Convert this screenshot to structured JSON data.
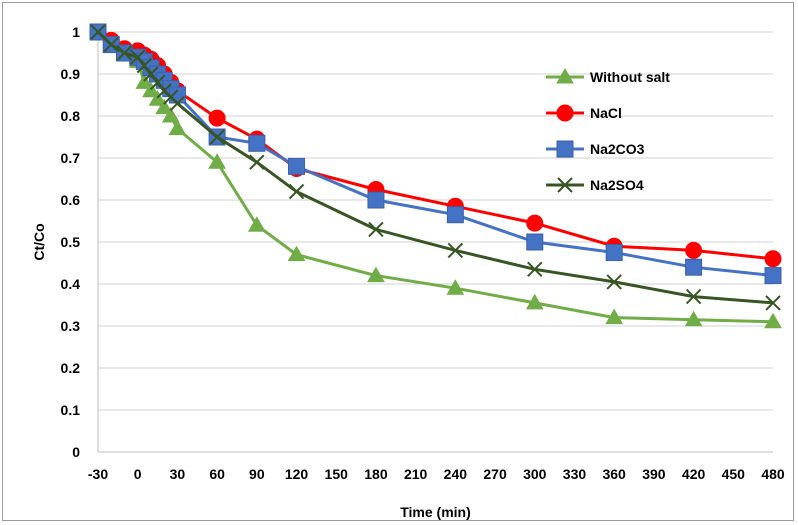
{
  "chart_data": {
    "type": "line",
    "xlabel": "Time (min)",
    "ylabel": "Ct/Co",
    "xlim": [
      -30,
      480
    ],
    "ylim": [
      0,
      1
    ],
    "xticks": [
      "-30",
      "0",
      "30",
      "60",
      "90",
      "120",
      "150",
      "180",
      "210",
      "240",
      "270",
      "300",
      "330",
      "360",
      "390",
      "420",
      "450",
      "480"
    ],
    "yticks": [
      "0",
      "0.1",
      "0.2",
      "0.3",
      "0.4",
      "0.5",
      "0.6",
      "0.7",
      "0.8",
      "0.9",
      "1"
    ],
    "grid": "horizontal",
    "legend_position": "right",
    "series": [
      {
        "name": "Without salt",
        "color": "#70ad47",
        "marker": "triangle",
        "x": [
          -30,
          -20,
          -10,
          0,
          5,
          10,
          15,
          20,
          25,
          30,
          60,
          90,
          120,
          180,
          240,
          300,
          360,
          420,
          480
        ],
        "y": [
          1.0,
          0.97,
          0.95,
          0.93,
          0.88,
          0.86,
          0.84,
          0.82,
          0.8,
          0.77,
          0.69,
          0.54,
          0.47,
          0.42,
          0.39,
          0.355,
          0.32,
          0.315,
          0.31
        ]
      },
      {
        "name": "NaCl",
        "color": "#ff0000",
        "marker": "circle",
        "x": [
          -30,
          -20,
          -10,
          0,
          5,
          10,
          15,
          20,
          25,
          30,
          60,
          90,
          120,
          180,
          240,
          300,
          360,
          420,
          480
        ],
        "y": [
          1.0,
          0.98,
          0.96,
          0.955,
          0.945,
          0.935,
          0.92,
          0.9,
          0.88,
          0.86,
          0.795,
          0.745,
          0.675,
          0.625,
          0.585,
          0.545,
          0.49,
          0.48,
          0.46
        ]
      },
      {
        "name": "Na2CO3",
        "color": "#4472c4",
        "marker": "square",
        "x": [
          -30,
          -20,
          -10,
          0,
          5,
          10,
          15,
          20,
          25,
          30,
          60,
          90,
          120,
          180,
          240,
          300,
          360,
          420,
          480
        ],
        "y": [
          1.0,
          0.97,
          0.95,
          0.94,
          0.93,
          0.915,
          0.9,
          0.885,
          0.865,
          0.85,
          0.75,
          0.735,
          0.68,
          0.6,
          0.565,
          0.5,
          0.475,
          0.44,
          0.42
        ]
      },
      {
        "name": "Na2SO4",
        "color": "#375623",
        "marker": "x",
        "x": [
          -30,
          -20,
          -10,
          0,
          5,
          10,
          15,
          20,
          25,
          30,
          60,
          90,
          120,
          180,
          240,
          300,
          360,
          420,
          480
        ],
        "y": [
          1.0,
          0.97,
          0.95,
          0.94,
          0.92,
          0.9,
          0.88,
          0.86,
          0.845,
          0.83,
          0.75,
          0.69,
          0.62,
          0.53,
          0.48,
          0.435,
          0.405,
          0.37,
          0.355
        ]
      }
    ]
  }
}
